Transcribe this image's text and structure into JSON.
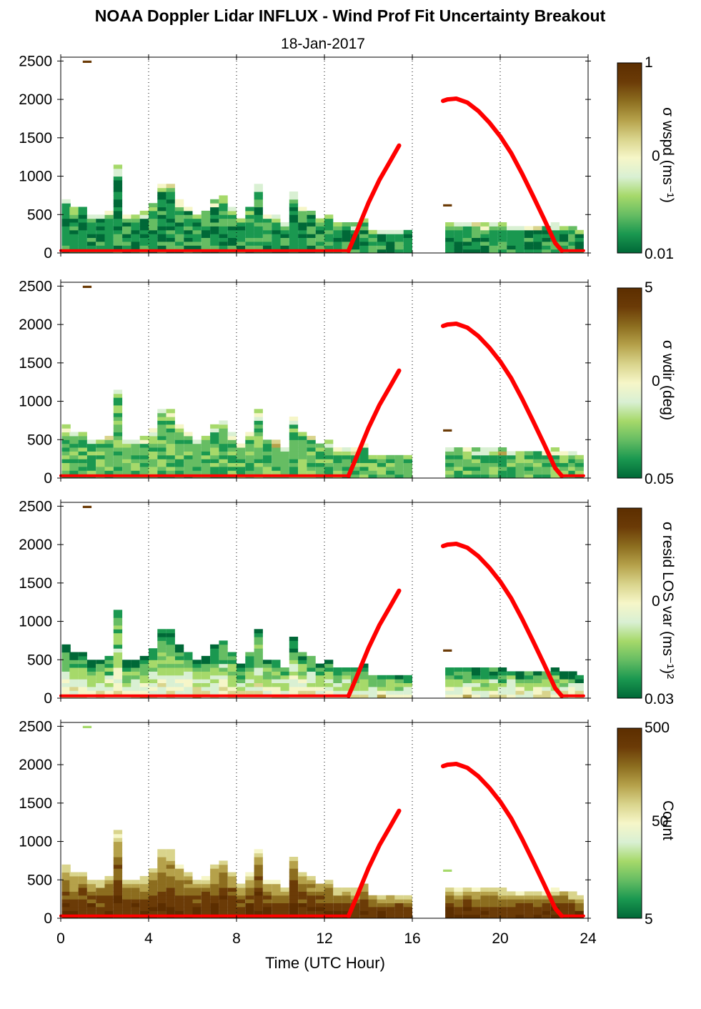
{
  "chart_data": {
    "type": "heatmap",
    "title": "NOAA Doppler Lidar INFLUX - Wind Prof Fit Uncertainty Breakout",
    "subtitle": "18-Jan-2017",
    "xlabel": "Time (UTC Hour)",
    "xlim": [
      0,
      24
    ],
    "x_ticks": [
      "0",
      "4",
      "8",
      "12",
      "16",
      "20",
      "24"
    ],
    "ylim": [
      0,
      2550
    ],
    "y_ticks": [
      "0",
      "500",
      "1000",
      "1500",
      "2000",
      "2500"
    ],
    "grid": "vertical dotted lines every 4 hours",
    "colors": {
      "colormap": [
        "#006837",
        "#1a9850",
        "#66bd63",
        "#a6d96a",
        "#d9f0d3",
        "#f6f6c8",
        "#d9d48c",
        "#b5a14a",
        "#8c6d1f",
        "#6b3b07",
        "#5c2e00"
      ],
      "overlay_line": "#ff0000"
    },
    "panels": [
      {
        "colorbar_label": "σ wspd (ms⁻¹)",
        "colorbar_ticks": [
          "1",
          "0",
          "0.01"
        ],
        "scale": "log",
        "intensity_range": [
          0.0,
          0.2
        ]
      },
      {
        "colorbar_label": "σ wdir (deg)",
        "colorbar_ticks": [
          "5",
          "0",
          "0.05"
        ],
        "scale": "log",
        "intensity_range": [
          0.05,
          0.3
        ]
      },
      {
        "colorbar_label": "σ resid LOS var (ms⁻¹)²",
        "colorbar_ticks": [
          "",
          "0",
          "0.03"
        ],
        "scale": "log",
        "intensity_range": [
          0.15,
          0.7
        ]
      },
      {
        "colorbar_label": "Count",
        "colorbar_ticks": [
          "500",
          "50",
          "5"
        ],
        "scale": "log",
        "intensity_range": [
          0.6,
          1.0
        ]
      }
    ],
    "data_columns_hours": [
      [
        0,
        16
      ],
      [
        17.5,
        23.8
      ]
    ],
    "column_tops_m": [
      {
        "x": 0.25,
        "top": 700
      },
      {
        "x": 0.6,
        "top": 580
      },
      {
        "x": 1.0,
        "top": 620
      },
      {
        "x": 1.4,
        "top": 520
      },
      {
        "x": 1.8,
        "top": 500
      },
      {
        "x": 2.2,
        "top": 560
      },
      {
        "x": 2.6,
        "top": 1160
      },
      {
        "x": 3.0,
        "top": 500
      },
      {
        "x": 3.4,
        "top": 520
      },
      {
        "x": 3.8,
        "top": 540
      },
      {
        "x": 4.2,
        "top": 670
      },
      {
        "x": 4.6,
        "top": 900
      },
      {
        "x": 5.0,
        "top": 880
      },
      {
        "x": 5.4,
        "top": 700
      },
      {
        "x": 5.8,
        "top": 620
      },
      {
        "x": 6.2,
        "top": 500
      },
      {
        "x": 6.6,
        "top": 560
      },
      {
        "x": 7.0,
        "top": 700
      },
      {
        "x": 7.4,
        "top": 760
      },
      {
        "x": 7.8,
        "top": 600
      },
      {
        "x": 8.2,
        "top": 460
      },
      {
        "x": 8.6,
        "top": 600
      },
      {
        "x": 9.0,
        "top": 900
      },
      {
        "x": 9.4,
        "top": 500
      },
      {
        "x": 9.8,
        "top": 480
      },
      {
        "x": 10.2,
        "top": 400
      },
      {
        "x": 10.6,
        "top": 820
      },
      {
        "x": 11.0,
        "top": 620
      },
      {
        "x": 11.4,
        "top": 560
      },
      {
        "x": 11.8,
        "top": 470
      },
      {
        "x": 12.2,
        "top": 480
      },
      {
        "x": 12.6,
        "top": 400
      },
      {
        "x": 13.0,
        "top": 410
      },
      {
        "x": 13.4,
        "top": 380
      },
      {
        "x": 13.8,
        "top": 470
      },
      {
        "x": 14.2,
        "top": 320
      },
      {
        "x": 14.6,
        "top": 310
      },
      {
        "x": 15.0,
        "top": 300
      },
      {
        "x": 15.4,
        "top": 300
      },
      {
        "x": 15.8,
        "top": 290
      },
      {
        "x": 17.7,
        "top": 390
      },
      {
        "x": 18.1,
        "top": 400
      },
      {
        "x": 18.5,
        "top": 390
      },
      {
        "x": 18.9,
        "top": 380
      },
      {
        "x": 19.3,
        "top": 380
      },
      {
        "x": 19.7,
        "top": 400
      },
      {
        "x": 20.1,
        "top": 380
      },
      {
        "x": 20.5,
        "top": 370
      },
      {
        "x": 20.9,
        "top": 350
      },
      {
        "x": 21.3,
        "top": 360
      },
      {
        "x": 21.7,
        "top": 370
      },
      {
        "x": 22.1,
        "top": 350
      },
      {
        "x": 22.5,
        "top": 380
      },
      {
        "x": 22.9,
        "top": 360
      },
      {
        "x": 23.3,
        "top": 330
      },
      {
        "x": 23.6,
        "top": 300
      }
    ],
    "isolated_cells": [
      {
        "x": 1.2,
        "y": 2480
      },
      {
        "x": 17.6,
        "y": 610
      }
    ],
    "overlay_curve": {
      "color": "#ff0000",
      "segments": [
        {
          "x": [
            0,
            13.1
          ],
          "y": [
            30,
            30
          ]
        },
        {
          "x": [
            13.1,
            13.5,
            14.0,
            14.5,
            15.0,
            15.4
          ],
          "y": [
            30,
            300,
            650,
            950,
            1200,
            1400
          ]
        },
        {
          "x": [
            17.4,
            17.6,
            18.0,
            18.5,
            19.0,
            19.5,
            20.0,
            20.5,
            21.0,
            21.5,
            22.0,
            22.5,
            22.8
          ],
          "y": [
            1980,
            2000,
            2010,
            1960,
            1850,
            1700,
            1520,
            1300,
            1030,
            740,
            440,
            130,
            30
          ]
        },
        {
          "x": [
            22.8,
            23.8
          ],
          "y": [
            30,
            30
          ]
        }
      ]
    }
  }
}
